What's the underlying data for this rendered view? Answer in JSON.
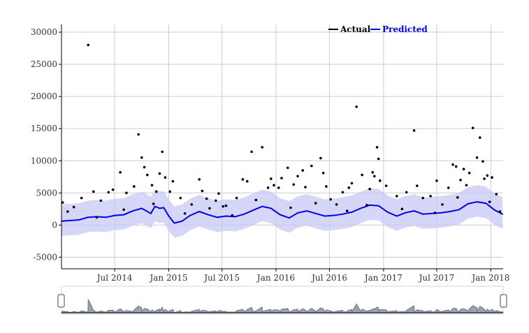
{
  "chart_data": {
    "type": "scatter",
    "title": "",
    "xlabel": "",
    "ylabel": "",
    "xlim": [
      "2014-01-01",
      "2018-02-12"
    ],
    "ylim": [
      -6800,
      31200
    ],
    "grid": true,
    "legend_position": "top-right",
    "y_ticks": [
      "30000",
      "25000",
      "20000",
      "15000",
      "10000",
      "5000",
      "0",
      "-5000"
    ],
    "x_ticks": [
      {
        "date": "2014-07-01",
        "label": "Jul 2014"
      },
      {
        "date": "2015-01-01",
        "label": "Jan 2015"
      },
      {
        "date": "2015-07-01",
        "label": "Jul 2015"
      },
      {
        "date": "2016-01-01",
        "label": "Jan 2016"
      },
      {
        "date": "2016-07-01",
        "label": "Jul 2016"
      },
      {
        "date": "2017-01-01",
        "label": "Jan 2017"
      },
      {
        "date": "2017-07-01",
        "label": "Jul 2017"
      },
      {
        "date": "2018-01-01",
        "label": "Jan 2018"
      }
    ],
    "series": [
      {
        "name": "Actual",
        "color": "#000000",
        "style": "points",
        "points": [
          [
            "2014-01-05",
            3500
          ],
          [
            "2014-01-22",
            2100
          ],
          [
            "2014-02-12",
            2800
          ],
          [
            "2014-03-10",
            4200
          ],
          [
            "2014-04-02",
            28000
          ],
          [
            "2014-04-20",
            5200
          ],
          [
            "2014-05-15",
            3800
          ],
          [
            "2014-06-10",
            5100
          ],
          [
            "2014-06-25",
            5500
          ],
          [
            "2014-07-20",
            8200
          ],
          [
            "2014-08-10",
            5000
          ],
          [
            "2014-09-05",
            6000
          ],
          [
            "2014-09-20",
            14100
          ],
          [
            "2014-10-01",
            10500
          ],
          [
            "2014-10-10",
            9000
          ],
          [
            "2014-10-20",
            7800
          ],
          [
            "2014-11-05",
            6200
          ],
          [
            "2014-11-20",
            5200
          ],
          [
            "2014-12-01",
            8000
          ],
          [
            "2014-12-10",
            11400
          ],
          [
            "2014-12-20",
            7400
          ],
          [
            "2015-01-05",
            5200
          ],
          [
            "2015-01-15",
            6800
          ],
          [
            "2015-02-10",
            4200
          ],
          [
            "2015-03-20",
            3200
          ],
          [
            "2015-04-15",
            7100
          ],
          [
            "2015-04-25",
            5300
          ],
          [
            "2015-05-10",
            4100
          ],
          [
            "2015-06-10",
            3800
          ],
          [
            "2015-06-20",
            4900
          ],
          [
            "2015-07-15",
            3000
          ],
          [
            "2015-08-20",
            4200
          ],
          [
            "2015-09-10",
            7100
          ],
          [
            "2015-09-25",
            6800
          ],
          [
            "2015-10-10",
            11400
          ],
          [
            "2015-11-15",
            12100
          ],
          [
            "2015-12-05",
            5800
          ],
          [
            "2015-12-15",
            7200
          ],
          [
            "2015-12-25",
            6200
          ],
          [
            "2016-01-10",
            5800
          ],
          [
            "2016-01-20",
            7300
          ],
          [
            "2016-02-10",
            8900
          ],
          [
            "2016-03-01",
            6300
          ],
          [
            "2016-03-15",
            7600
          ],
          [
            "2016-04-01",
            8500
          ],
          [
            "2016-04-10",
            5900
          ],
          [
            "2016-05-01",
            9200
          ],
          [
            "2016-06-01",
            10400
          ],
          [
            "2016-06-10",
            8100
          ],
          [
            "2016-06-20",
            6000
          ],
          [
            "2016-07-05",
            4000
          ],
          [
            "2016-07-25",
            3200
          ],
          [
            "2016-08-15",
            5100
          ],
          [
            "2016-09-05",
            5800
          ],
          [
            "2016-09-15",
            6500
          ],
          [
            "2016-10-01",
            18400
          ],
          [
            "2016-10-20",
            7800
          ],
          [
            "2016-11-15",
            5600
          ],
          [
            "2016-11-25",
            8200
          ],
          [
            "2016-12-01",
            7600
          ],
          [
            "2016-12-10",
            12100
          ],
          [
            "2016-12-15",
            10300
          ],
          [
            "2016-12-20",
            6900
          ],
          [
            "2017-01-10",
            6100
          ],
          [
            "2017-02-15",
            4500
          ],
          [
            "2017-03-20",
            5100
          ],
          [
            "2017-04-15",
            14700
          ],
          [
            "2017-04-25",
            6100
          ],
          [
            "2017-05-15",
            4200
          ],
          [
            "2017-06-10",
            4500
          ],
          [
            "2017-07-01",
            6900
          ],
          [
            "2017-07-20",
            3200
          ],
          [
            "2017-08-10",
            5800
          ],
          [
            "2017-08-25",
            9400
          ],
          [
            "2017-09-05",
            9100
          ],
          [
            "2017-09-20",
            7000
          ],
          [
            "2017-10-01",
            8700
          ],
          [
            "2017-10-10",
            6200
          ],
          [
            "2017-10-20",
            8100
          ],
          [
            "2017-11-01",
            15100
          ],
          [
            "2017-11-15",
            10500
          ],
          [
            "2017-11-25",
            13600
          ],
          [
            "2017-12-05",
            9900
          ],
          [
            "2017-12-10",
            7200
          ],
          [
            "2017-12-20",
            7700
          ],
          [
            "2018-01-05",
            7400
          ],
          [
            "2018-01-20",
            4800
          ],
          [
            "2018-02-01",
            2100
          ],
          [
            "2014-05-01",
            1200
          ],
          [
            "2014-08-01",
            2400
          ],
          [
            "2014-11-10",
            3300
          ],
          [
            "2015-02-25",
            1800
          ],
          [
            "2015-05-20",
            2600
          ],
          [
            "2015-08-05",
            1500
          ],
          [
            "2015-10-25",
            3900
          ],
          [
            "2016-02-20",
            2700
          ],
          [
            "2016-05-15",
            3400
          ],
          [
            "2016-08-30",
            2200
          ],
          [
            "2016-11-05",
            3100
          ],
          [
            "2017-03-05",
            2500
          ],
          [
            "2017-06-25",
            1900
          ],
          [
            "2017-09-10",
            4300
          ],
          [
            "2017-12-28",
            3600
          ],
          [
            "2015-07-05",
            2900
          ]
        ]
      },
      {
        "name": "Predicted",
        "color": "#0000ee",
        "style": "line",
        "band_color": "#c8c8f5",
        "points": [
          [
            "2014-01-01",
            600
          ],
          [
            "2014-02-01",
            700
          ],
          [
            "2014-03-01",
            800
          ],
          [
            "2014-04-01",
            1200
          ],
          [
            "2014-05-01",
            1300
          ],
          [
            "2014-06-01",
            1200
          ],
          [
            "2014-07-01",
            1500
          ],
          [
            "2014-08-01",
            1600
          ],
          [
            "2014-09-01",
            2200
          ],
          [
            "2014-10-01",
            2600
          ],
          [
            "2014-11-01",
            1800
          ],
          [
            "2014-11-15",
            2900
          ],
          [
            "2014-12-01",
            2600
          ],
          [
            "2014-12-15",
            2700
          ],
          [
            "2015-01-01",
            1400
          ],
          [
            "2015-01-20",
            300
          ],
          [
            "2015-02-15",
            600
          ],
          [
            "2015-03-15",
            1500
          ],
          [
            "2015-04-15",
            2100
          ],
          [
            "2015-05-15",
            1600
          ],
          [
            "2015-06-15",
            1200
          ],
          [
            "2015-07-15",
            1400
          ],
          [
            "2015-08-15",
            1300
          ],
          [
            "2015-09-15",
            1700
          ],
          [
            "2015-10-15",
            2300
          ],
          [
            "2015-11-15",
            2900
          ],
          [
            "2015-12-15",
            2600
          ],
          [
            "2016-01-15",
            1600
          ],
          [
            "2016-02-15",
            1100
          ],
          [
            "2016-03-15",
            1900
          ],
          [
            "2016-04-15",
            2200
          ],
          [
            "2016-05-15",
            1800
          ],
          [
            "2016-06-15",
            1400
          ],
          [
            "2016-07-15",
            1500
          ],
          [
            "2016-08-15",
            1700
          ],
          [
            "2016-09-15",
            2000
          ],
          [
            "2016-10-15",
            2600
          ],
          [
            "2016-11-15",
            3100
          ],
          [
            "2016-12-15",
            3000
          ],
          [
            "2017-01-15",
            2000
          ],
          [
            "2017-02-15",
            1400
          ],
          [
            "2017-03-15",
            1900
          ],
          [
            "2017-04-15",
            2200
          ],
          [
            "2017-05-15",
            1700
          ],
          [
            "2017-06-15",
            1800
          ],
          [
            "2017-07-15",
            1900
          ],
          [
            "2017-08-15",
            2100
          ],
          [
            "2017-09-15",
            2400
          ],
          [
            "2017-10-15",
            3300
          ],
          [
            "2017-11-15",
            3600
          ],
          [
            "2017-12-15",
            3400
          ],
          [
            "2018-01-15",
            2300
          ],
          [
            "2018-02-10",
            1700
          ]
        ]
      }
    ]
  }
}
